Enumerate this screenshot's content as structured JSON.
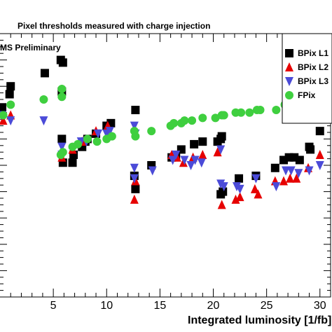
{
  "chart_data": {
    "type": "scatter",
    "title": "Pixel thresholds measured with charge injection",
    "annotation": "MS Preliminary",
    "xlabel": "Integrated luminosity [1/fb]",
    "ylabel": "",
    "xlim": [
      0,
      31
    ],
    "ylim": [
      0,
      10
    ],
    "x_ticks": [
      5,
      10,
      15,
      20,
      25,
      30
    ],
    "legend_position": "top-right",
    "grid": false,
    "colors": {
      "BPix L1": "#000000",
      "BPix L2": "#e60000",
      "BPix L3": "#4b4bd8",
      "FPix": "#3fcf3f"
    },
    "series": [
      {
        "name": "BPix L1",
        "marker": "square",
        "points": [
          [
            0.2,
            7.2
          ],
          [
            0.9,
            7.7
          ],
          [
            1.0,
            8.0
          ],
          [
            4.2,
            8.5
          ],
          [
            5.7,
            9.0
          ],
          [
            5.9,
            8.9
          ],
          [
            5.8,
            7.8
          ],
          [
            5.8,
            6.0
          ],
          [
            5.9,
            5.1
          ],
          [
            6.8,
            5.1
          ],
          [
            6.9,
            5.4
          ],
          [
            7.7,
            5.7
          ],
          [
            8.0,
            5.9
          ],
          [
            8.2,
            6.0
          ],
          [
            9.0,
            6.2
          ],
          [
            10.0,
            6.5
          ],
          [
            10.4,
            6.6
          ],
          [
            12.7,
            7.1
          ],
          [
            12.6,
            4.6
          ],
          [
            12.7,
            4.1
          ],
          [
            14.2,
            5.0
          ],
          [
            16.1,
            5.3
          ],
          [
            16.5,
            5.4
          ],
          [
            17.0,
            5.6
          ],
          [
            18.2,
            5.8
          ],
          [
            19.0,
            5.9
          ],
          [
            20.4,
            5.9
          ],
          [
            20.7,
            6.0
          ],
          [
            20.8,
            6.1
          ],
          [
            20.9,
            4.0
          ],
          [
            20.7,
            3.9
          ],
          [
            22.4,
            4.5
          ],
          [
            24.0,
            4.6
          ],
          [
            25.8,
            4.9
          ],
          [
            26.6,
            5.2
          ],
          [
            27.1,
            5.3
          ],
          [
            27.6,
            5.3
          ],
          [
            28.1,
            5.2
          ],
          [
            29.0,
            5.7
          ],
          [
            29.1,
            5.6
          ],
          [
            30.0,
            6.3
          ]
        ]
      },
      {
        "name": "BPix L2",
        "marker": "triangle-up",
        "points": [
          [
            0.3,
            6.7
          ],
          [
            1.0,
            6.9
          ],
          [
            5.8,
            5.3
          ],
          [
            6.8,
            5.6
          ],
          [
            7.7,
            5.9
          ],
          [
            9.0,
            6.3
          ],
          [
            10.1,
            6.5
          ],
          [
            12.6,
            3.7
          ],
          [
            12.7,
            4.4
          ],
          [
            16.1,
            5.4
          ],
          [
            16.6,
            5.3
          ],
          [
            17.2,
            5.1
          ],
          [
            18.1,
            5.3
          ],
          [
            19.0,
            5.4
          ],
          [
            20.4,
            5.5
          ],
          [
            20.8,
            3.5
          ],
          [
            22.1,
            3.7
          ],
          [
            22.5,
            3.8
          ],
          [
            23.9,
            4.1
          ],
          [
            24.2,
            3.9
          ],
          [
            25.8,
            4.4
          ],
          [
            26.6,
            4.4
          ],
          [
            27.2,
            4.5
          ],
          [
            27.8,
            4.5
          ],
          [
            28.9,
            4.9
          ],
          [
            30.0,
            5.4
          ]
        ]
      },
      {
        "name": "BPix L3",
        "marker": "triangle-down",
        "points": [
          [
            0.2,
            6.9
          ],
          [
            1.0,
            6.7
          ],
          [
            4.1,
            6.7
          ],
          [
            5.8,
            5.7
          ],
          [
            5.8,
            5.4
          ],
          [
            7.6,
            5.9
          ],
          [
            8.1,
            5.9
          ],
          [
            9.2,
            6.2
          ],
          [
            10.0,
            6.2
          ],
          [
            10.3,
            6.3
          ],
          [
            12.6,
            6.5
          ],
          [
            12.7,
            6.2
          ],
          [
            12.6,
            4.9
          ],
          [
            12.6,
            4.5
          ],
          [
            14.3,
            4.8
          ],
          [
            16.2,
            5.2
          ],
          [
            16.5,
            5.4
          ],
          [
            17.3,
            5.2
          ],
          [
            17.9,
            5.0
          ],
          [
            18.3,
            5.2
          ],
          [
            18.9,
            5.1
          ],
          [
            20.7,
            5.6
          ],
          [
            20.7,
            4.3
          ],
          [
            21.0,
            4.2
          ],
          [
            22.2,
            4.2
          ],
          [
            22.5,
            4.1
          ],
          [
            24.0,
            4.5
          ],
          [
            25.9,
            4.2
          ],
          [
            26.8,
            4.8
          ],
          [
            27.3,
            4.8
          ],
          [
            28.0,
            4.7
          ],
          [
            29.0,
            4.8
          ],
          [
            30.0,
            5.0
          ]
        ]
      },
      {
        "name": "FPix",
        "marker": "circle",
        "points": [
          [
            0.3,
            6.9
          ],
          [
            1.0,
            7.3
          ],
          [
            4.1,
            7.5
          ],
          [
            5.8,
            7.9
          ],
          [
            5.8,
            7.6
          ],
          [
            5.7,
            5.4
          ],
          [
            5.9,
            5.5
          ],
          [
            6.8,
            5.7
          ],
          [
            7.3,
            5.8
          ],
          [
            8.2,
            6.0
          ],
          [
            9.1,
            5.9
          ],
          [
            10.0,
            6.0
          ],
          [
            10.5,
            6.1
          ],
          [
            12.6,
            6.3
          ],
          [
            12.7,
            6.1
          ],
          [
            14.2,
            6.3
          ],
          [
            16.0,
            6.5
          ],
          [
            16.3,
            6.6
          ],
          [
            17.0,
            6.6
          ],
          [
            17.3,
            6.7
          ],
          [
            18.0,
            6.7
          ],
          [
            19.0,
            6.8
          ],
          [
            20.2,
            6.8
          ],
          [
            20.8,
            6.9
          ],
          [
            21.0,
            6.9
          ],
          [
            22.1,
            7.0
          ],
          [
            22.6,
            7.0
          ],
          [
            23.4,
            7.0
          ],
          [
            24.1,
            7.1
          ],
          [
            24.4,
            7.1
          ],
          [
            25.9,
            7.1
          ],
          [
            26.7,
            7.3
          ],
          [
            27.2,
            7.4
          ],
          [
            27.8,
            7.4
          ],
          [
            28.0,
            7.5
          ],
          [
            28.5,
            7.6
          ],
          [
            29.1,
            7.5
          ],
          [
            29.5,
            7.6
          ],
          [
            30.0,
            8.1
          ]
        ]
      }
    ]
  }
}
